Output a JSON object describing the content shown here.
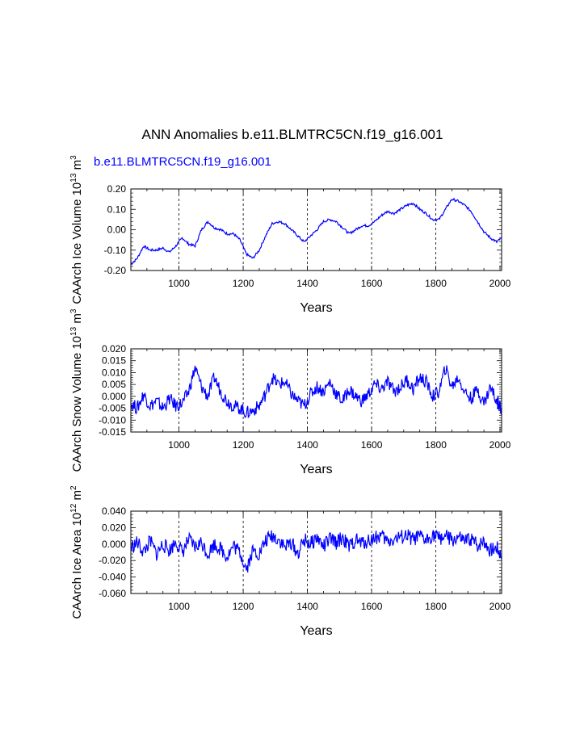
{
  "title": "ANN Anomalies b.e11.BLMTRC5CN.f19_g16.001",
  "legend": {
    "label": "b.e11.BLMTRC5CN.f19_g16.001",
    "color": "#0000ff"
  },
  "line_color": "#0000ff",
  "chart_data": [
    {
      "type": "line",
      "id": "ice-volume",
      "ylabel": "CAArch Ice Volume 10",
      "ylabel_exp": "13",
      "ylabel_unit": " m",
      "ylabel_unit_exp": "3",
      "xlabel": "Years",
      "xlim": [
        850,
        2005
      ],
      "ylim": [
        -0.2,
        0.2
      ],
      "xticks": [
        1000,
        1200,
        1400,
        1600,
        1800,
        2000
      ],
      "xtick_labels": [
        "1000",
        "1200",
        "1400",
        "1600",
        "1800",
        "2000"
      ],
      "yticks": [
        -0.2,
        -0.1,
        0.0,
        0.1,
        0.2
      ],
      "ytick_labels": [
        "-0.20",
        "-0.10",
        "0.00",
        "0.10",
        "0.20"
      ],
      "grid_x": [
        1000,
        1200,
        1400,
        1600,
        1800
      ],
      "x": [
        850,
        870,
        890,
        910,
        930,
        950,
        970,
        990,
        1010,
        1030,
        1050,
        1070,
        1090,
        1110,
        1130,
        1150,
        1170,
        1190,
        1210,
        1230,
        1250,
        1270,
        1290,
        1310,
        1330,
        1350,
        1370,
        1390,
        1410,
        1430,
        1450,
        1470,
        1490,
        1510,
        1530,
        1550,
        1570,
        1590,
        1610,
        1630,
        1650,
        1670,
        1690,
        1710,
        1730,
        1750,
        1770,
        1790,
        1810,
        1830,
        1850,
        1870,
        1890,
        1910,
        1930,
        1950,
        1970,
        1990,
        2005
      ],
      "values": [
        -0.17,
        -0.14,
        -0.08,
        -0.1,
        -0.1,
        -0.09,
        -0.11,
        -0.08,
        -0.04,
        -0.07,
        -0.08,
        0.0,
        0.04,
        0.01,
        0.0,
        -0.02,
        -0.02,
        -0.05,
        -0.12,
        -0.14,
        -0.1,
        -0.03,
        0.03,
        0.04,
        0.03,
        0.0,
        -0.03,
        -0.06,
        -0.03,
        0.0,
        0.04,
        0.05,
        0.04,
        0.01,
        -0.02,
        0.0,
        0.02,
        0.02,
        0.04,
        0.07,
        0.09,
        0.08,
        0.1,
        0.12,
        0.13,
        0.1,
        0.08,
        0.05,
        0.05,
        0.1,
        0.15,
        0.14,
        0.12,
        0.09,
        0.04,
        -0.01,
        -0.04,
        -0.06,
        -0.04
      ]
    },
    {
      "type": "line",
      "id": "snow-volume",
      "ylabel": "CAArch Snow Volume 10",
      "ylabel_exp": "13",
      "ylabel_unit": " m",
      "ylabel_unit_exp": "3",
      "xlabel": "Years",
      "xlim": [
        850,
        2005
      ],
      "ylim": [
        -0.015,
        0.02
      ],
      "xticks": [
        1000,
        1200,
        1400,
        1600,
        1800,
        2000
      ],
      "xtick_labels": [
        "1000",
        "1200",
        "1400",
        "1600",
        "1800",
        "2000"
      ],
      "yticks": [
        -0.015,
        -0.01,
        -0.005,
        0.0,
        0.005,
        0.01,
        0.015,
        0.02
      ],
      "ytick_labels": [
        "-0.015",
        "-0.010",
        "-0.005",
        "0.000",
        "0.005",
        "0.010",
        "0.015",
        "0.020"
      ],
      "grid_x": [
        1000,
        1200,
        1400,
        1600,
        1800
      ],
      "x": [
        850,
        870,
        890,
        910,
        930,
        950,
        970,
        990,
        1010,
        1030,
        1050,
        1070,
        1090,
        1110,
        1130,
        1150,
        1170,
        1190,
        1210,
        1230,
        1250,
        1270,
        1290,
        1310,
        1330,
        1350,
        1370,
        1390,
        1410,
        1430,
        1450,
        1470,
        1490,
        1510,
        1530,
        1550,
        1570,
        1590,
        1610,
        1630,
        1650,
        1670,
        1690,
        1710,
        1730,
        1750,
        1770,
        1790,
        1810,
        1830,
        1850,
        1870,
        1890,
        1910,
        1930,
        1950,
        1970,
        1990,
        2005
      ],
      "values": [
        -0.003,
        -0.005,
        0.001,
        -0.004,
        -0.002,
        -0.005,
        -0.001,
        -0.004,
        -0.003,
        0.002,
        0.012,
        0.004,
        0.0,
        0.008,
        0.002,
        -0.002,
        -0.004,
        -0.005,
        -0.007,
        -0.006,
        -0.004,
        0.001,
        0.008,
        0.005,
        0.006,
        0.001,
        -0.002,
        -0.004,
        0.001,
        0.004,
        0.002,
        0.006,
        0.001,
        -0.002,
        0.003,
        0.0,
        -0.002,
        0.001,
        0.005,
        0.003,
        0.006,
        0.002,
        0.004,
        0.007,
        0.003,
        0.008,
        0.006,
        0.0,
        0.002,
        0.012,
        0.004,
        0.008,
        0.002,
        -0.001,
        0.003,
        -0.003,
        0.004,
        -0.002,
        -0.005
      ]
    },
    {
      "type": "line",
      "id": "ice-area",
      "ylabel": "CAArch Ice Area 10",
      "ylabel_exp": "12",
      "ylabel_unit": " m",
      "ylabel_unit_exp": "2",
      "xlabel": "Years",
      "xlim": [
        850,
        2005
      ],
      "ylim": [
        -0.06,
        0.04
      ],
      "xticks": [
        1000,
        1200,
        1400,
        1600,
        1800,
        2000
      ],
      "xtick_labels": [
        "1000",
        "1200",
        "1400",
        "1600",
        "1800",
        "2000"
      ],
      "yticks": [
        -0.06,
        -0.04,
        -0.02,
        0.0,
        0.02,
        0.04
      ],
      "ytick_labels": [
        "-0.060",
        "-0.040",
        "-0.020",
        "0.000",
        "0.020",
        "0.040"
      ],
      "grid_x": [
        1000,
        1200,
        1400,
        1600,
        1800
      ],
      "x": [
        850,
        870,
        890,
        910,
        930,
        950,
        970,
        990,
        1010,
        1030,
        1050,
        1070,
        1090,
        1110,
        1130,
        1150,
        1170,
        1190,
        1210,
        1230,
        1250,
        1270,
        1290,
        1310,
        1330,
        1350,
        1370,
        1390,
        1410,
        1430,
        1450,
        1470,
        1490,
        1510,
        1530,
        1550,
        1570,
        1590,
        1610,
        1630,
        1650,
        1670,
        1690,
        1710,
        1730,
        1750,
        1770,
        1790,
        1810,
        1830,
        1850,
        1870,
        1890,
        1910,
        1930,
        1950,
        1970,
        1990,
        2005
      ],
      "values": [
        -0.005,
        0.002,
        -0.01,
        0.004,
        -0.012,
        0.0,
        -0.008,
        0.003,
        -0.01,
        0.005,
        -0.004,
        0.002,
        -0.012,
        0.0,
        -0.006,
        -0.015,
        -0.002,
        -0.01,
        -0.03,
        -0.008,
        -0.012,
        0.004,
        0.01,
        0.006,
        -0.004,
        0.002,
        -0.012,
        0.005,
        0.0,
        0.008,
        -0.003,
        0.006,
        0.002,
        0.008,
        -0.004,
        0.005,
        0.001,
        0.004,
        0.008,
        0.01,
        0.003,
        0.006,
        0.008,
        0.01,
        0.005,
        0.009,
        0.004,
        0.012,
        0.007,
        0.01,
        0.004,
        0.008,
        0.003,
        0.006,
        -0.002,
        0.004,
        -0.008,
        -0.004,
        -0.015
      ]
    }
  ]
}
